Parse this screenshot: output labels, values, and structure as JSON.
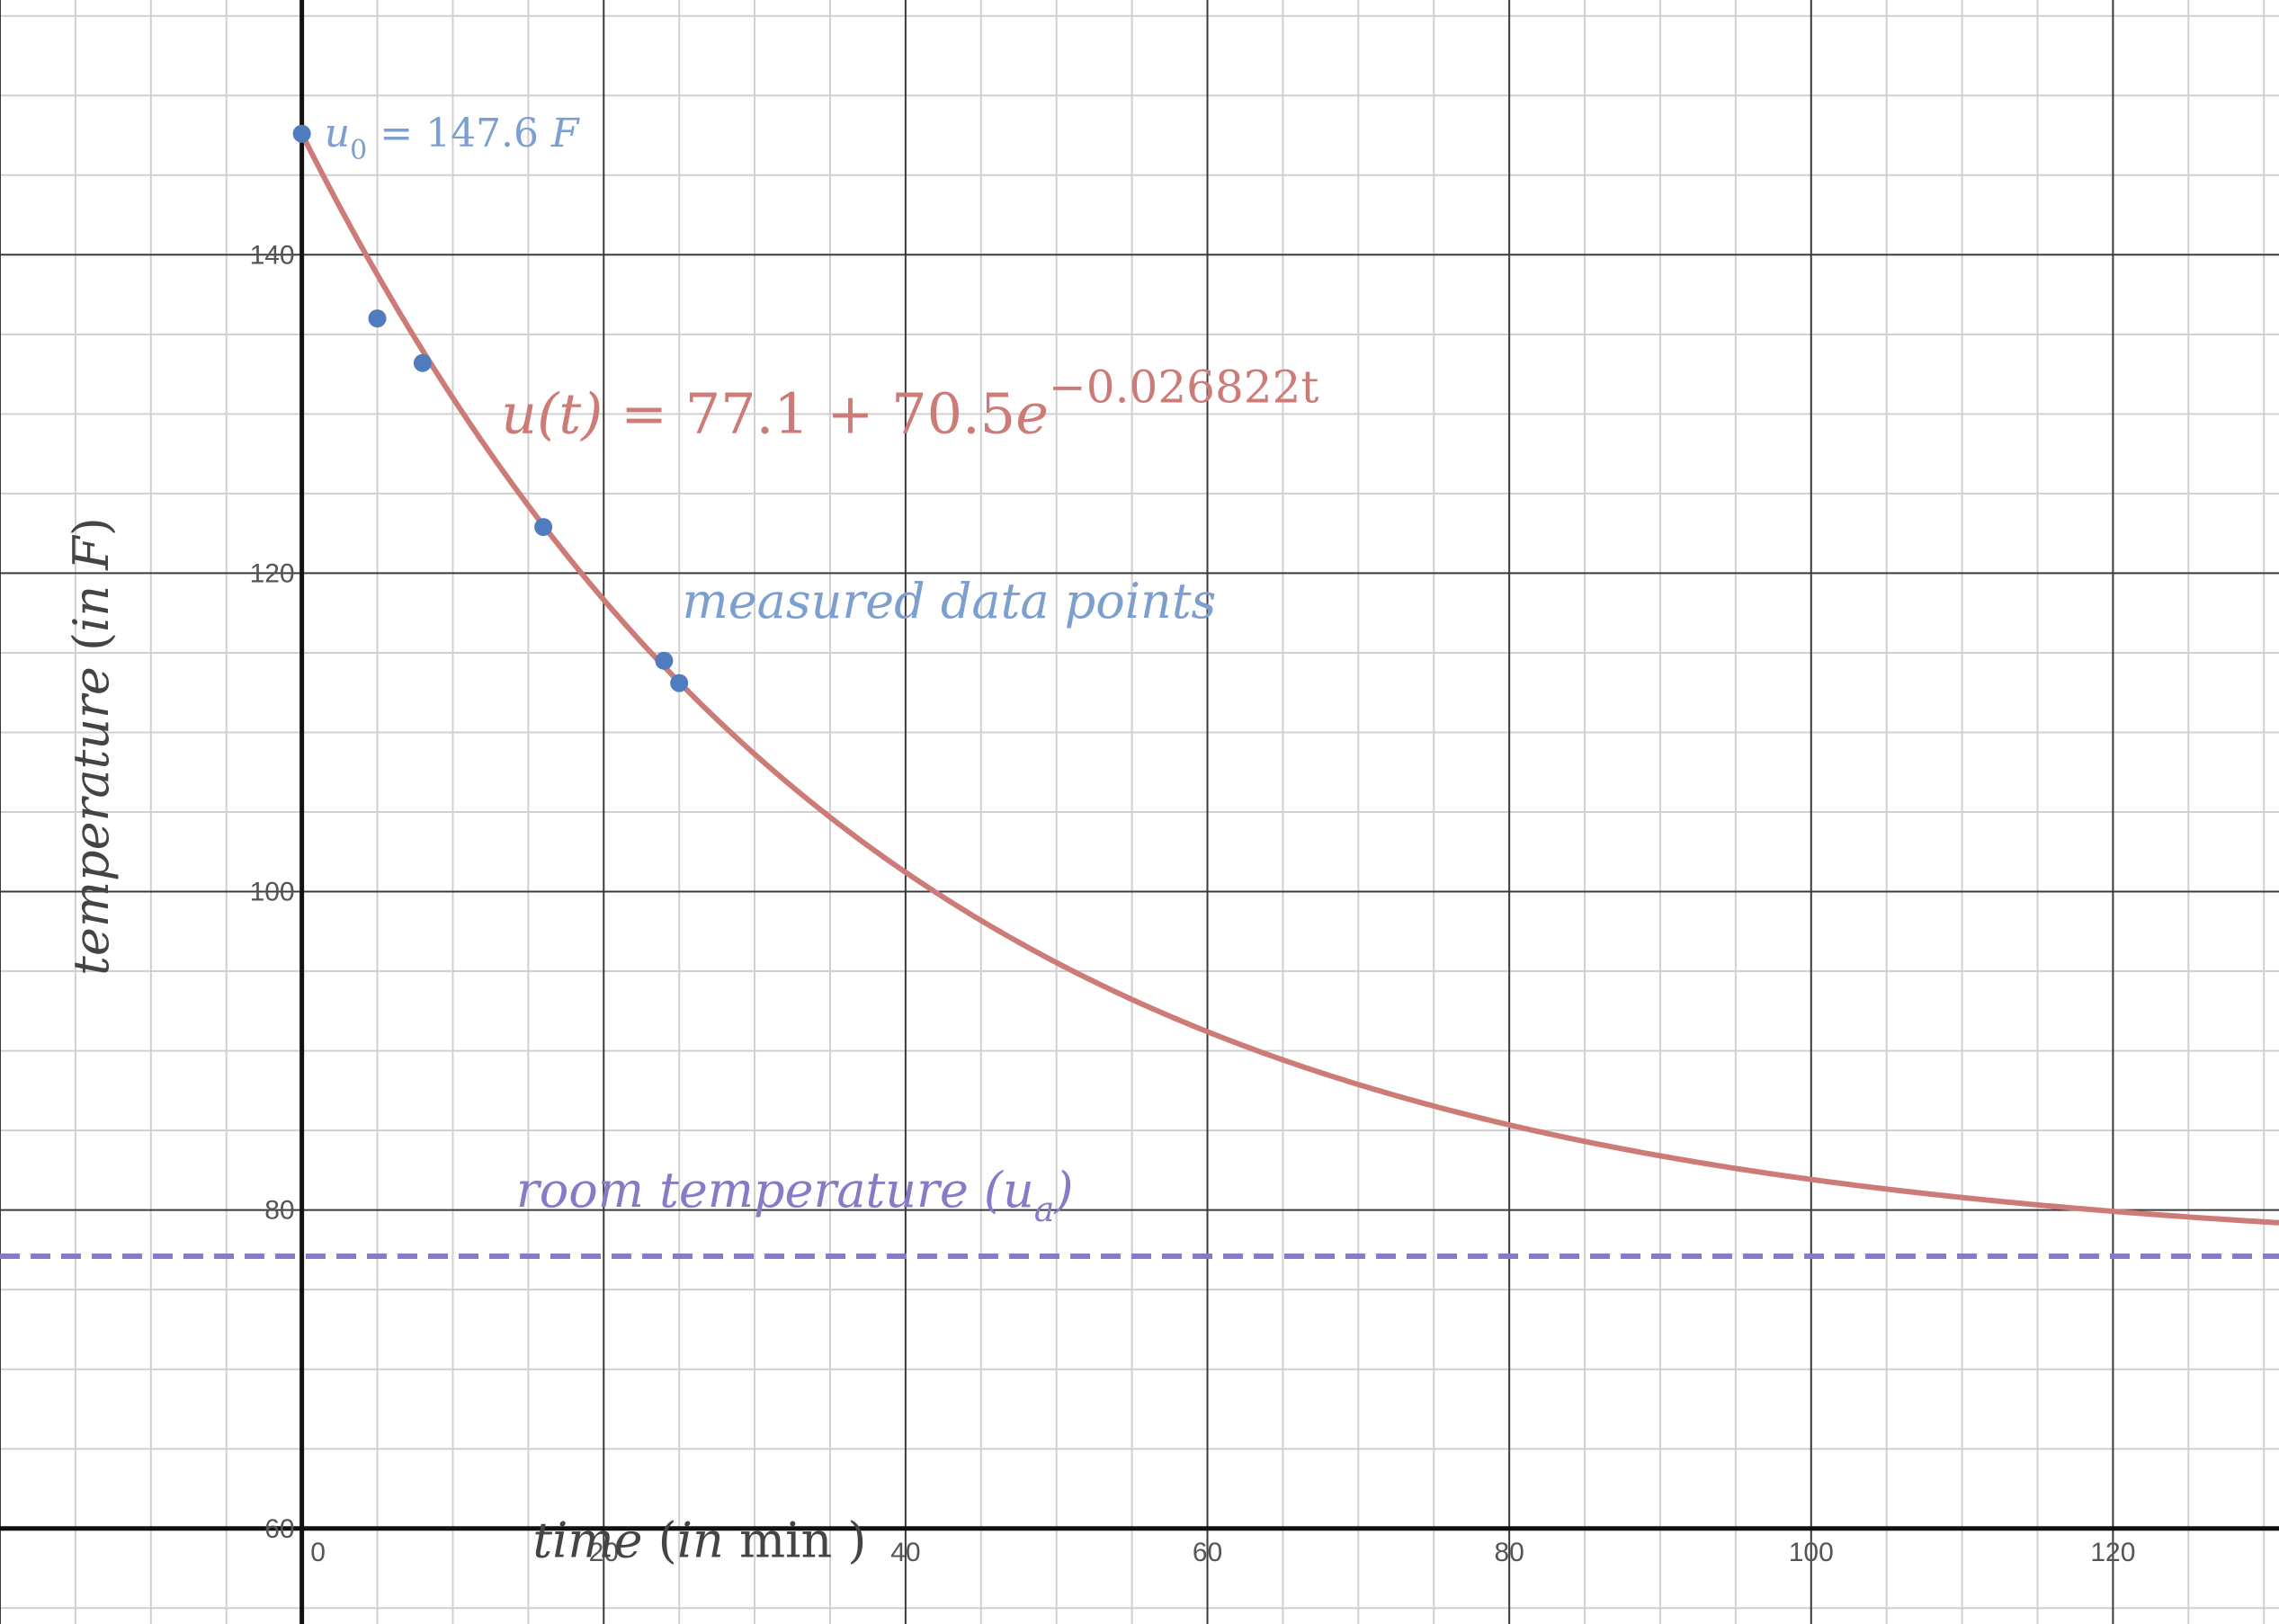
{
  "chart_data": {
    "type": "scatter",
    "xlabel_parts": {
      "var": "time",
      "open": " (",
      "in": "in",
      "unit": " min",
      "close": " )"
    },
    "ylabel_parts": {
      "var": "temperature",
      "open": " (",
      "in": "in",
      "unit": " F",
      "close": ")"
    },
    "xlim": [
      -20,
      131
    ],
    "ylim": [
      54,
      156
    ],
    "x_ticks": [
      0,
      20,
      40,
      60,
      80,
      100,
      120
    ],
    "y_ticks": [
      60,
      80,
      100,
      120,
      140
    ],
    "grid": true,
    "series": [
      {
        "name": "measured data points",
        "kind": "scatter",
        "color": "#4f7cbf",
        "points": [
          {
            "x": 0,
            "y": 147.6
          },
          {
            "x": 5,
            "y": 136
          },
          {
            "x": 8,
            "y": 133.2
          },
          {
            "x": 16,
            "y": 122.9
          },
          {
            "x": 24,
            "y": 114.5
          },
          {
            "x": 25,
            "y": 113.1
          }
        ]
      },
      {
        "kind": "function",
        "color": "#cc7b76",
        "model": {
          "a": 77.1,
          "b": 70.5,
          "k": -0.026822
        },
        "x_range": [
          0,
          131
        ]
      },
      {
        "kind": "hline",
        "color": "#8a79c7",
        "y": 77.1,
        "dashed": true
      }
    ],
    "annotations": {
      "initial": {
        "var": "u",
        "sub": "0",
        "rest": " = 147.6 ",
        "unit": "F"
      },
      "equation": {
        "lhs": "u(t)",
        "mid": " = 77.1 + 70.5",
        "e": "e",
        "exp": "−0.026822t"
      },
      "data_label": "measured data points",
      "room_label": {
        "text": "room temperature (u",
        "sub": "a",
        "close": ")"
      }
    }
  }
}
